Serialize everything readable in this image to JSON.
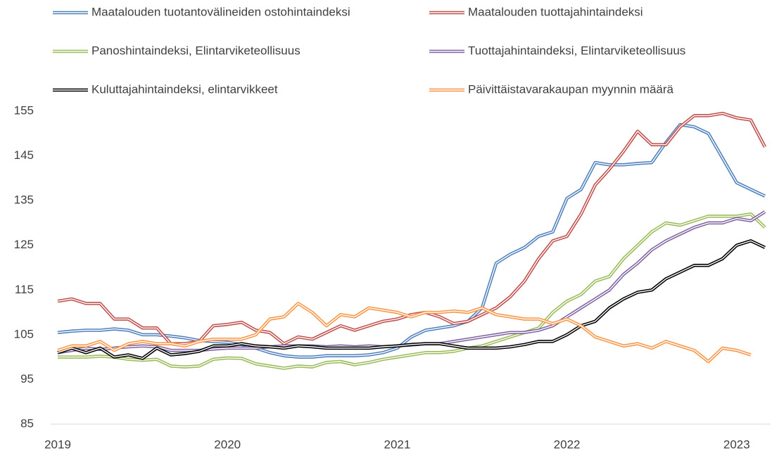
{
  "chart_data": {
    "type": "line",
    "categories": [
      "2019",
      null,
      null,
      null,
      null,
      null,
      null,
      null,
      null,
      null,
      null,
      null,
      "2020",
      null,
      null,
      null,
      null,
      null,
      null,
      null,
      null,
      null,
      null,
      null,
      "2021",
      null,
      null,
      null,
      null,
      null,
      null,
      null,
      null,
      null,
      null,
      null,
      "2022",
      null,
      null,
      null,
      null,
      null,
      null,
      null,
      null,
      null,
      null,
      null,
      "2023",
      null,
      null
    ],
    "ylim": [
      85,
      155
    ],
    "yticks": [
      85,
      95,
      105,
      115,
      125,
      135,
      145,
      155
    ],
    "series": [
      {
        "name": "Maatalouden tuotantovälineiden ostohintaindeksi",
        "color": "#4f81bd",
        "values": [
          105.5,
          105.8,
          106,
          106,
          106.3,
          106,
          105,
          105,
          104.7,
          104.3,
          103.7,
          103.5,
          103.3,
          102.8,
          102,
          101,
          100.3,
          100,
          100,
          100.3,
          100.3,
          100.3,
          100.5,
          101,
          102,
          104.5,
          106,
          106.5,
          107,
          108,
          111,
          121,
          123,
          124.5,
          127,
          128,
          135.5,
          137.5,
          143.5,
          143,
          143,
          143.3,
          143.5,
          148,
          152,
          151.5,
          150,
          144.5,
          139,
          137.5,
          136
        ]
      },
      {
        "name": "Maatalouden tuottajahintaindeksi",
        "color": "#c0504d",
        "values": [
          112.5,
          113,
          112,
          112,
          108.5,
          108.5,
          106.5,
          106.5,
          103,
          103,
          103.5,
          107,
          107.3,
          107.8,
          106,
          105.5,
          103,
          104.5,
          104,
          105.5,
          107,
          106,
          107,
          108,
          108.5,
          109.5,
          110,
          109,
          107.5,
          108,
          109.5,
          111,
          113.5,
          117,
          122,
          126,
          127,
          132,
          138.5,
          142,
          146,
          150.5,
          147.5,
          147.5,
          151.5,
          154,
          154,
          154.5,
          153.5,
          153,
          147
        ]
      },
      {
        "name": "Panoshintaindeksi, Elintarviketeollisuus",
        "color": "#9bbb59",
        "values": [
          100,
          100,
          100,
          100.2,
          100,
          99.5,
          99.3,
          99.5,
          98,
          97.8,
          98,
          99.5,
          99.8,
          99.7,
          98.5,
          98,
          97.5,
          98,
          97.8,
          98.8,
          99,
          98.3,
          98.8,
          99.5,
          100,
          100.5,
          101,
          101,
          101.3,
          102,
          102.5,
          103.5,
          104.5,
          105.5,
          106.5,
          110,
          112.5,
          114,
          117,
          118,
          122,
          125,
          128,
          130,
          129.5,
          130.5,
          131.5,
          131.5,
          131.5,
          132,
          129
        ]
      },
      {
        "name": "Tuottajahintaindeksi, Elintarviketeollisuus",
        "color": "#8064a2",
        "values": [
          101,
          101.5,
          102,
          101.7,
          102,
          102.3,
          102.5,
          102.3,
          101.5,
          101.5,
          101.5,
          101.8,
          102,
          102,
          102,
          102.3,
          102.5,
          102.5,
          102.5,
          102.3,
          102.5,
          102.3,
          102.5,
          102.3,
          102.5,
          102.7,
          103,
          103,
          103.5,
          104,
          104.5,
          105,
          105.5,
          105.5,
          106,
          107,
          109,
          111,
          113,
          115,
          118.5,
          121,
          124,
          126,
          127.5,
          129,
          130,
          130,
          131,
          130.5,
          132.5
        ]
      },
      {
        "name": "Kuluttajahintaindeksi, elintarvikkeet",
        "color": "#000000",
        "values": [
          101,
          102,
          101,
          102,
          100,
          100.5,
          99.7,
          102,
          100.5,
          100.8,
          101.3,
          102.5,
          102.5,
          103,
          102.5,
          102.3,
          102,
          102.5,
          102.3,
          102,
          102,
          102,
          102,
          102.3,
          102.5,
          102.8,
          103,
          103,
          102.5,
          102,
          102,
          102,
          102.3,
          102.8,
          103.5,
          103.5,
          105,
          107,
          108,
          111,
          113,
          114.5,
          115,
          117.5,
          119,
          120.5,
          120.5,
          122,
          125,
          126,
          124.5
        ]
      },
      {
        "name": "Päivittäistavarakaupan myynnin määrä",
        "color": "#f79646",
        "values": [
          101.5,
          102.5,
          102.5,
          103.5,
          101.5,
          103,
          103.5,
          103,
          103,
          102.5,
          103.5,
          104,
          104,
          104,
          105,
          108.5,
          109,
          112,
          110,
          107,
          109.5,
          109,
          111,
          110.5,
          110,
          109,
          110,
          110,
          110.3,
          110,
          111,
          109.5,
          109,
          108.5,
          108.5,
          107.5,
          108.5,
          107,
          104.5,
          103.5,
          102.5,
          103,
          102,
          103.5,
          102.5,
          101.5,
          99,
          102,
          101.5,
          100.5,
          null
        ]
      }
    ]
  }
}
